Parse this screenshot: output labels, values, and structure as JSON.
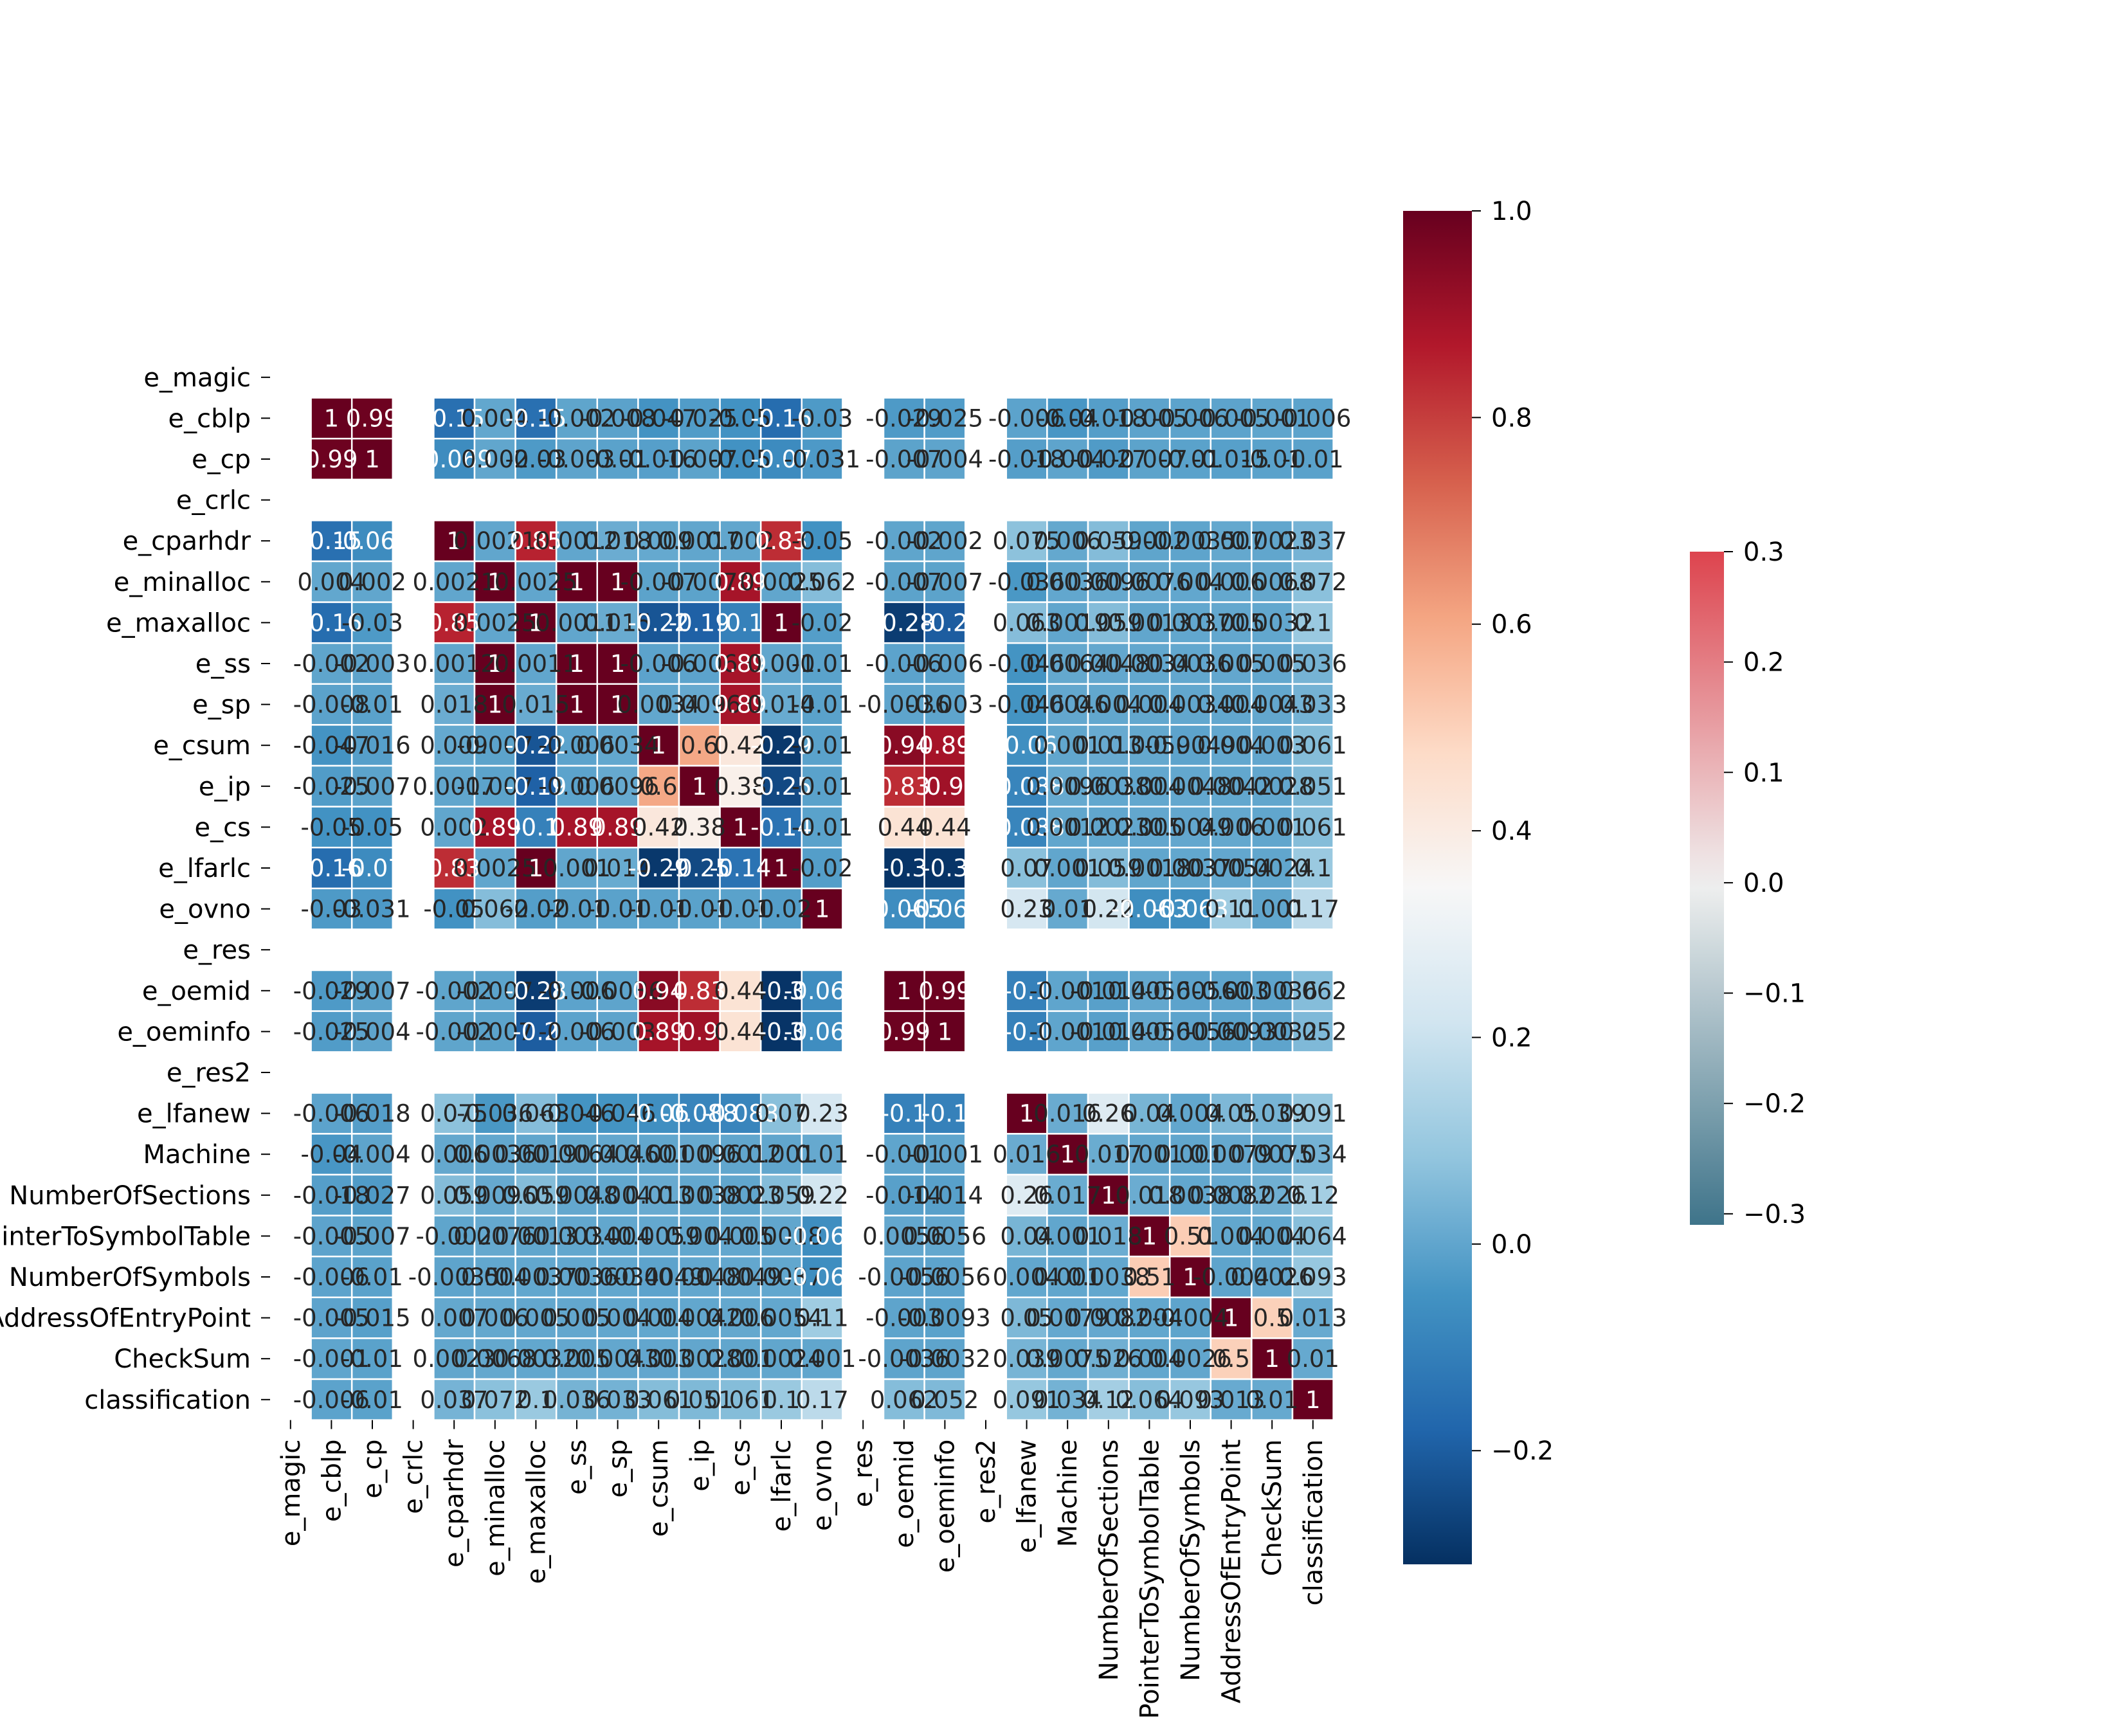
{
  "chart_data": {
    "type": "heatmap",
    "title": "",
    "variables": [
      "e_magic",
      "e_cblp",
      "e_cp",
      "e_crlc",
      "e_cparhdr",
      "e_minalloc",
      "e_maxalloc",
      "e_ss",
      "e_sp",
      "e_csum",
      "e_ip",
      "e_cs",
      "e_lfarlc",
      "e_ovno",
      "e_res",
      "e_oemid",
      "e_oeminfo",
      "e_res2",
      "e_lfanew",
      "Machine",
      "NumberOfSections",
      "PointerToSymbolTable",
      "NumberOfSymbols",
      "AddressOfEntryPoint",
      "CheckSum",
      "classification"
    ],
    "matrix": [
      [
        null,
        null,
        null,
        null,
        null,
        null,
        null,
        null,
        null,
        null,
        null,
        null,
        null,
        null,
        null,
        null,
        null,
        null,
        null,
        null,
        null,
        null,
        null,
        null,
        null,
        null
      ],
      [
        null,
        1,
        0.99,
        null,
        -0.15,
        0.004,
        -0.15,
        -0.002,
        -0.008,
        -0.047,
        -0.025,
        -0.05,
        -0.16,
        -0.03,
        null,
        -0.029,
        -0.025,
        null,
        -0.006,
        -0.04,
        -0.018,
        -0.005,
        -0.006,
        -0.005,
        -0.001,
        -0.006
      ],
      [
        null,
        0.99,
        1,
        null,
        -0.069,
        0.002,
        -0.03,
        -0.003,
        -0.01,
        -0.016,
        -0.007,
        -0.05,
        -0.07,
        -0.031,
        null,
        -0.007,
        -0.004,
        null,
        -0.018,
        -0.004,
        -0.027,
        -0.007,
        -0.01,
        -0.015,
        -0.01,
        -0.01
      ],
      [
        null,
        null,
        null,
        null,
        null,
        null,
        null,
        null,
        null,
        null,
        null,
        null,
        null,
        null,
        null,
        null,
        null,
        null,
        null,
        null,
        null,
        null,
        null,
        null,
        null,
        null
      ],
      [
        null,
        -0.15,
        -0.069,
        null,
        1,
        0.0021,
        0.85,
        0.0012,
        0.018,
        0.009,
        0.0017,
        0.002,
        0.83,
        -0.05,
        null,
        -0.002,
        -0.002,
        null,
        0.075,
        0.006,
        0.059,
        -0.002,
        -0.0035,
        0.007,
        0.0023,
        0.037
      ],
      [
        null,
        0.004,
        0.002,
        null,
        0.0021,
        1,
        0.0025,
        1,
        1,
        -0.007,
        -0.007,
        0.89,
        0.0025,
        0.062,
        null,
        -0.007,
        -0.007,
        null,
        -0.036,
        0.0036,
        0.0096,
        0.0076,
        0.004,
        0.006,
        0.0068,
        0.072
      ],
      [
        null,
        -0.16,
        -0.03,
        null,
        0.85,
        0.0025,
        1,
        0.0011,
        0.015,
        -0.22,
        -0.19,
        -0.1,
        1,
        -0.02,
        null,
        -0.28,
        -0.2,
        null,
        0.063,
        0.0019,
        0.059,
        0.0013,
        0.0037,
        0.005,
        0.0032,
        0.1
      ],
      [
        null,
        -0.002,
        -0.003,
        null,
        0.0012,
        1,
        0.0011,
        1,
        1,
        -0.006,
        -0.006,
        0.89,
        0.001,
        -0.01,
        null,
        -0.006,
        -0.006,
        null,
        -0.046,
        0.0064,
        0.0048,
        0.0034,
        0.0036,
        0.005,
        0.005,
        0.036
      ],
      [
        null,
        -0.008,
        -0.01,
        null,
        0.018,
        1,
        0.015,
        1,
        1,
        0.0034,
        0.0096,
        0.89,
        0.014,
        -0.01,
        null,
        -0.0036,
        -0.003,
        null,
        -0.046,
        0.0046,
        0.004,
        0.004,
        0.0034,
        0.004,
        0.0043,
        0.033
      ],
      [
        null,
        -0.047,
        -0.016,
        null,
        0.009,
        -0.007,
        -0.22,
        -0.006,
        0.0034,
        1,
        0.6,
        0.42,
        -0.29,
        -0.01,
        null,
        0.94,
        0.89,
        null,
        -0.06,
        0.001,
        0.013,
        0.0059,
        -0.0049,
        0.004,
        0.003,
        0.061
      ],
      [
        null,
        -0.025,
        -0.007,
        null,
        0.0017,
        -0.007,
        -0.19,
        -0.006,
        0.0096,
        0.6,
        1,
        0.38,
        -0.25,
        -0.01,
        null,
        0.83,
        0.9,
        null,
        -0.088,
        0.0096,
        0.0038,
        0.004,
        0.0048,
        0.0042,
        0.0028,
        0.051
      ],
      [
        null,
        -0.05,
        -0.05,
        null,
        0.002,
        0.89,
        -0.1,
        0.89,
        0.89,
        0.42,
        0.38,
        1,
        -0.14,
        -0.01,
        null,
        0.44,
        0.44,
        null,
        -0.088,
        0.0012,
        0.0023,
        0.005,
        0.0049,
        0.006,
        0.001,
        0.061
      ],
      [
        null,
        -0.16,
        -0.07,
        null,
        0.83,
        0.0025,
        1,
        0.001,
        0.014,
        -0.29,
        -0.25,
        -0.14,
        1,
        -0.02,
        null,
        -0.3,
        -0.3,
        null,
        0.07,
        0.001,
        0.059,
        0.0018,
        0.0037,
        0.0054,
        0.0024,
        0.1
      ],
      [
        null,
        -0.03,
        -0.031,
        null,
        -0.05,
        0.062,
        -0.02,
        -0.01,
        -0.01,
        -0.01,
        -0.01,
        -0.01,
        -0.02,
        1,
        null,
        -0.065,
        -0.065,
        null,
        0.23,
        0.01,
        0.22,
        -0.063,
        -0.063,
        0.11,
        0.001,
        0.17
      ],
      [
        null,
        null,
        null,
        null,
        null,
        null,
        null,
        null,
        null,
        null,
        null,
        null,
        null,
        null,
        null,
        null,
        null,
        null,
        null,
        null,
        null,
        null,
        null,
        null,
        null,
        null
      ],
      [
        null,
        -0.029,
        -0.007,
        null,
        -0.002,
        -0.007,
        -0.28,
        -0.006,
        -0.0036,
        0.94,
        0.83,
        0.44,
        -0.3,
        -0.065,
        null,
        1,
        0.99,
        null,
        -0.1,
        -0.001,
        -0.014,
        0.0056,
        -0.0056,
        -0.003,
        -0.0036,
        0.062
      ],
      [
        null,
        -0.025,
        -0.004,
        null,
        -0.002,
        -0.007,
        -0.2,
        -0.006,
        -0.003,
        0.89,
        0.9,
        0.44,
        -0.3,
        -0.065,
        null,
        0.99,
        1,
        null,
        -0.1,
        -0.001,
        -0.014,
        0.0056,
        -0.0056,
        -0.0093,
        -0.0032,
        0.052
      ],
      [
        null,
        null,
        null,
        null,
        null,
        null,
        null,
        null,
        null,
        null,
        null,
        null,
        null,
        null,
        null,
        null,
        null,
        null,
        null,
        null,
        null,
        null,
        null,
        null,
        null,
        null
      ],
      [
        null,
        -0.006,
        -0.018,
        null,
        0.075,
        -0.036,
        0.063,
        -0.046,
        -0.046,
        -0.06,
        -0.088,
        -0.088,
        0.07,
        0.23,
        null,
        -0.1,
        -0.1,
        null,
        1,
        0.016,
        0.26,
        0.04,
        0.004,
        0.05,
        0.039,
        0.091
      ],
      [
        null,
        -0.04,
        -0.004,
        null,
        0.006,
        0.0036,
        0.0019,
        0.0064,
        0.0046,
        0.001,
        0.0096,
        0.0012,
        0.001,
        0.01,
        null,
        -0.001,
        -0.001,
        null,
        0.016,
        1,
        0.017,
        0.001,
        0.001,
        0.0079,
        0.0075,
        0.034
      ],
      [
        null,
        -0.018,
        -0.027,
        null,
        0.059,
        0.0096,
        0.059,
        0.0048,
        0.004,
        0.013,
        0.0038,
        0.0023,
        0.059,
        0.22,
        null,
        -0.014,
        -0.014,
        null,
        0.26,
        0.017,
        1,
        0.018,
        0.0038,
        0.0082,
        0.026,
        0.12
      ],
      [
        null,
        -0.005,
        -0.007,
        null,
        -0.002,
        0.0076,
        0.0013,
        0.0034,
        0.004,
        0.0059,
        0.004,
        0.005,
        0.0018,
        -0.063,
        null,
        0.0056,
        0.0056,
        null,
        0.04,
        0.001,
        0.018,
        1,
        0.51,
        0.004,
        0.004,
        0.064
      ],
      [
        null,
        -0.006,
        -0.01,
        null,
        -0.0035,
        0.004,
        0.0037,
        0.0036,
        0.0034,
        -0.0049,
        0.0048,
        0.0049,
        0.0037,
        -0.063,
        null,
        -0.0056,
        -0.0056,
        null,
        0.004,
        0.001,
        0.0038,
        0.51,
        1,
        -0.004,
        0.0026,
        0.093
      ],
      [
        null,
        -0.005,
        -0.015,
        null,
        0.007,
        0.006,
        0.005,
        0.005,
        0.004,
        0.004,
        0.0042,
        0.006,
        0.0054,
        0.11,
        null,
        -0.003,
        -0.0093,
        null,
        0.05,
        0.0079,
        0.0082,
        0.004,
        -0.004,
        1,
        0.5,
        0.013
      ],
      [
        null,
        -0.001,
        -0.01,
        null,
        0.0023,
        0.0068,
        0.0032,
        0.005,
        0.0043,
        0.003,
        0.0028,
        0.001,
        0.0024,
        0.001,
        null,
        -0.0036,
        -0.0032,
        null,
        0.039,
        0.0075,
        0.026,
        0.004,
        0.0026,
        0.5,
        1,
        0.01
      ],
      [
        null,
        -0.006,
        -0.01,
        null,
        0.037,
        0.072,
        0.1,
        0.036,
        0.033,
        0.061,
        0.051,
        0.061,
        0.1,
        0.17,
        null,
        0.062,
        0.052,
        null,
        0.091,
        0.034,
        0.12,
        0.064,
        0.093,
        0.013,
        0.01,
        1
      ]
    ],
    "colorbar_main": {
      "colormap": "RdBu_r",
      "range": [
        -0.31,
        1.0
      ],
      "ticks": [
        "1.0",
        "0.8",
        "0.6",
        "0.4",
        "0.2",
        "0.0",
        "−0.2"
      ],
      "tick_values": [
        1.0,
        0.8,
        0.6,
        0.4,
        0.2,
        0.0,
        -0.2
      ]
    },
    "colorbar_secondary": {
      "colormap": "diverging teal-red",
      "range": [
        -0.31,
        0.3
      ],
      "ticks": [
        "0.3",
        "0.2",
        "0.1",
        "0.0",
        "−0.1",
        "−0.2",
        "−0.3"
      ],
      "tick_values": [
        0.3,
        0.2,
        0.1,
        0.0,
        -0.1,
        -0.2,
        -0.3
      ]
    }
  }
}
